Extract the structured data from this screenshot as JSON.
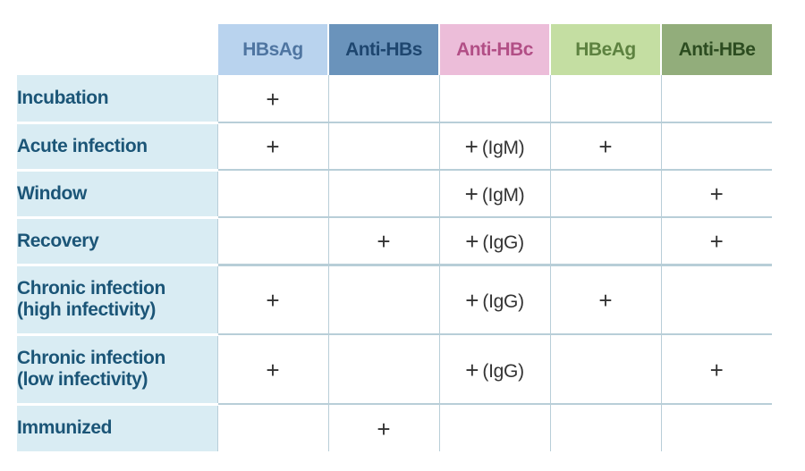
{
  "columns": [
    {
      "label": "HBsAg",
      "bg": "#b9d3ee",
      "fg": "#4f75a1"
    },
    {
      "label": "Anti-HBs",
      "bg": "#6a93bb",
      "fg": "#1e466f"
    },
    {
      "label": "Anti-HBc",
      "bg": "#ecbdd9",
      "fg": "#b24f86"
    },
    {
      "label": "HBeAg",
      "bg": "#c4dea2",
      "fg": "#5d8240"
    },
    {
      "label": "Anti-HBe",
      "bg": "#92ad7b",
      "fg": "#2c4c20"
    }
  ],
  "plus_symbol": "+",
  "rows": [
    {
      "label": "Incubation",
      "cells": [
        "+",
        "",
        "",
        "",
        ""
      ]
    },
    {
      "label": "Acute infection",
      "cells": [
        "+",
        "",
        "+ (IgM)",
        "+",
        ""
      ]
    },
    {
      "label": "Window",
      "cells": [
        "",
        "",
        "+ (IgM)",
        "",
        "+"
      ]
    },
    {
      "label": "Recovery",
      "cells": [
        "",
        "+",
        "+ (IgG)",
        "",
        "+"
      ]
    },
    {
      "label": "Chronic infection\n(high infectivity)",
      "cells": [
        "+",
        "",
        "+ (IgG)",
        "+",
        ""
      ]
    },
    {
      "label": "Chronic infection\n(low infectivity)",
      "cells": [
        "+",
        "",
        "+ (IgG)",
        "",
        "+"
      ]
    },
    {
      "label": "Immunized",
      "cells": [
        "",
        "+",
        "",
        "",
        ""
      ]
    }
  ],
  "cell_values": {
    "r0": [
      "+",
      "",
      "",
      "",
      ""
    ],
    "r1": [
      "+",
      "",
      "+ (IgM)",
      "+",
      ""
    ],
    "r2": [
      "",
      "",
      "+ (IgM)",
      "",
      "+"
    ],
    "r3": [
      "",
      "+",
      "+ (IgG)",
      "",
      "+"
    ],
    "r4": [
      "+",
      "",
      "+ (IgG)",
      "+",
      ""
    ],
    "r5": [
      "+",
      "",
      "+ (IgG)",
      "",
      "+"
    ],
    "r6": [
      "",
      "+",
      "",
      "",
      ""
    ]
  }
}
